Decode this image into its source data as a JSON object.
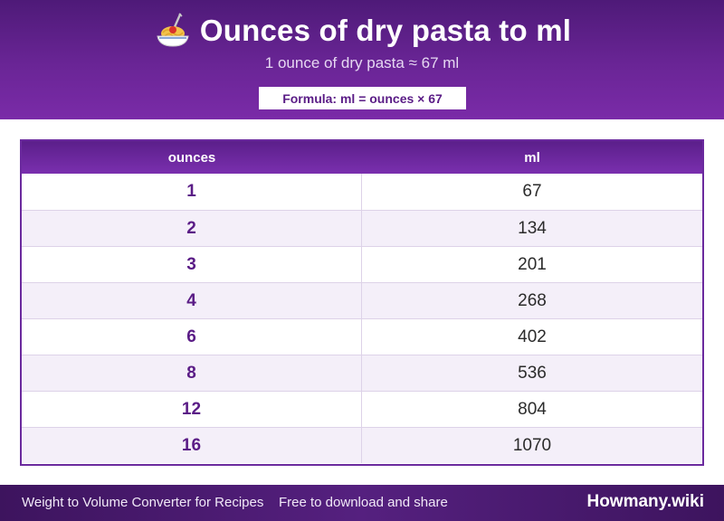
{
  "header": {
    "title": "Ounces of dry pasta to ml",
    "subtitle": "1 ounce of dry pasta ≈ 67 ml",
    "formula": "Formula: ml = ounces × 67",
    "icon": "pasta-icon"
  },
  "table": {
    "columns": [
      "ounces",
      "ml"
    ],
    "rows": [
      [
        "1",
        "67"
      ],
      [
        "2",
        "134"
      ],
      [
        "3",
        "201"
      ],
      [
        "4",
        "268"
      ],
      [
        "6",
        "402"
      ],
      [
        "8",
        "536"
      ],
      [
        "12",
        "804"
      ],
      [
        "16",
        "1070"
      ]
    ]
  },
  "footer": {
    "left_text": "Weight to Volume Converter for Recipes",
    "mid_text": "Free to download and share",
    "brand": "Howmany.wiki"
  },
  "colors": {
    "accent": "#6a2596",
    "header_text": "#ffffff",
    "row_alt": "#f4eff9"
  }
}
